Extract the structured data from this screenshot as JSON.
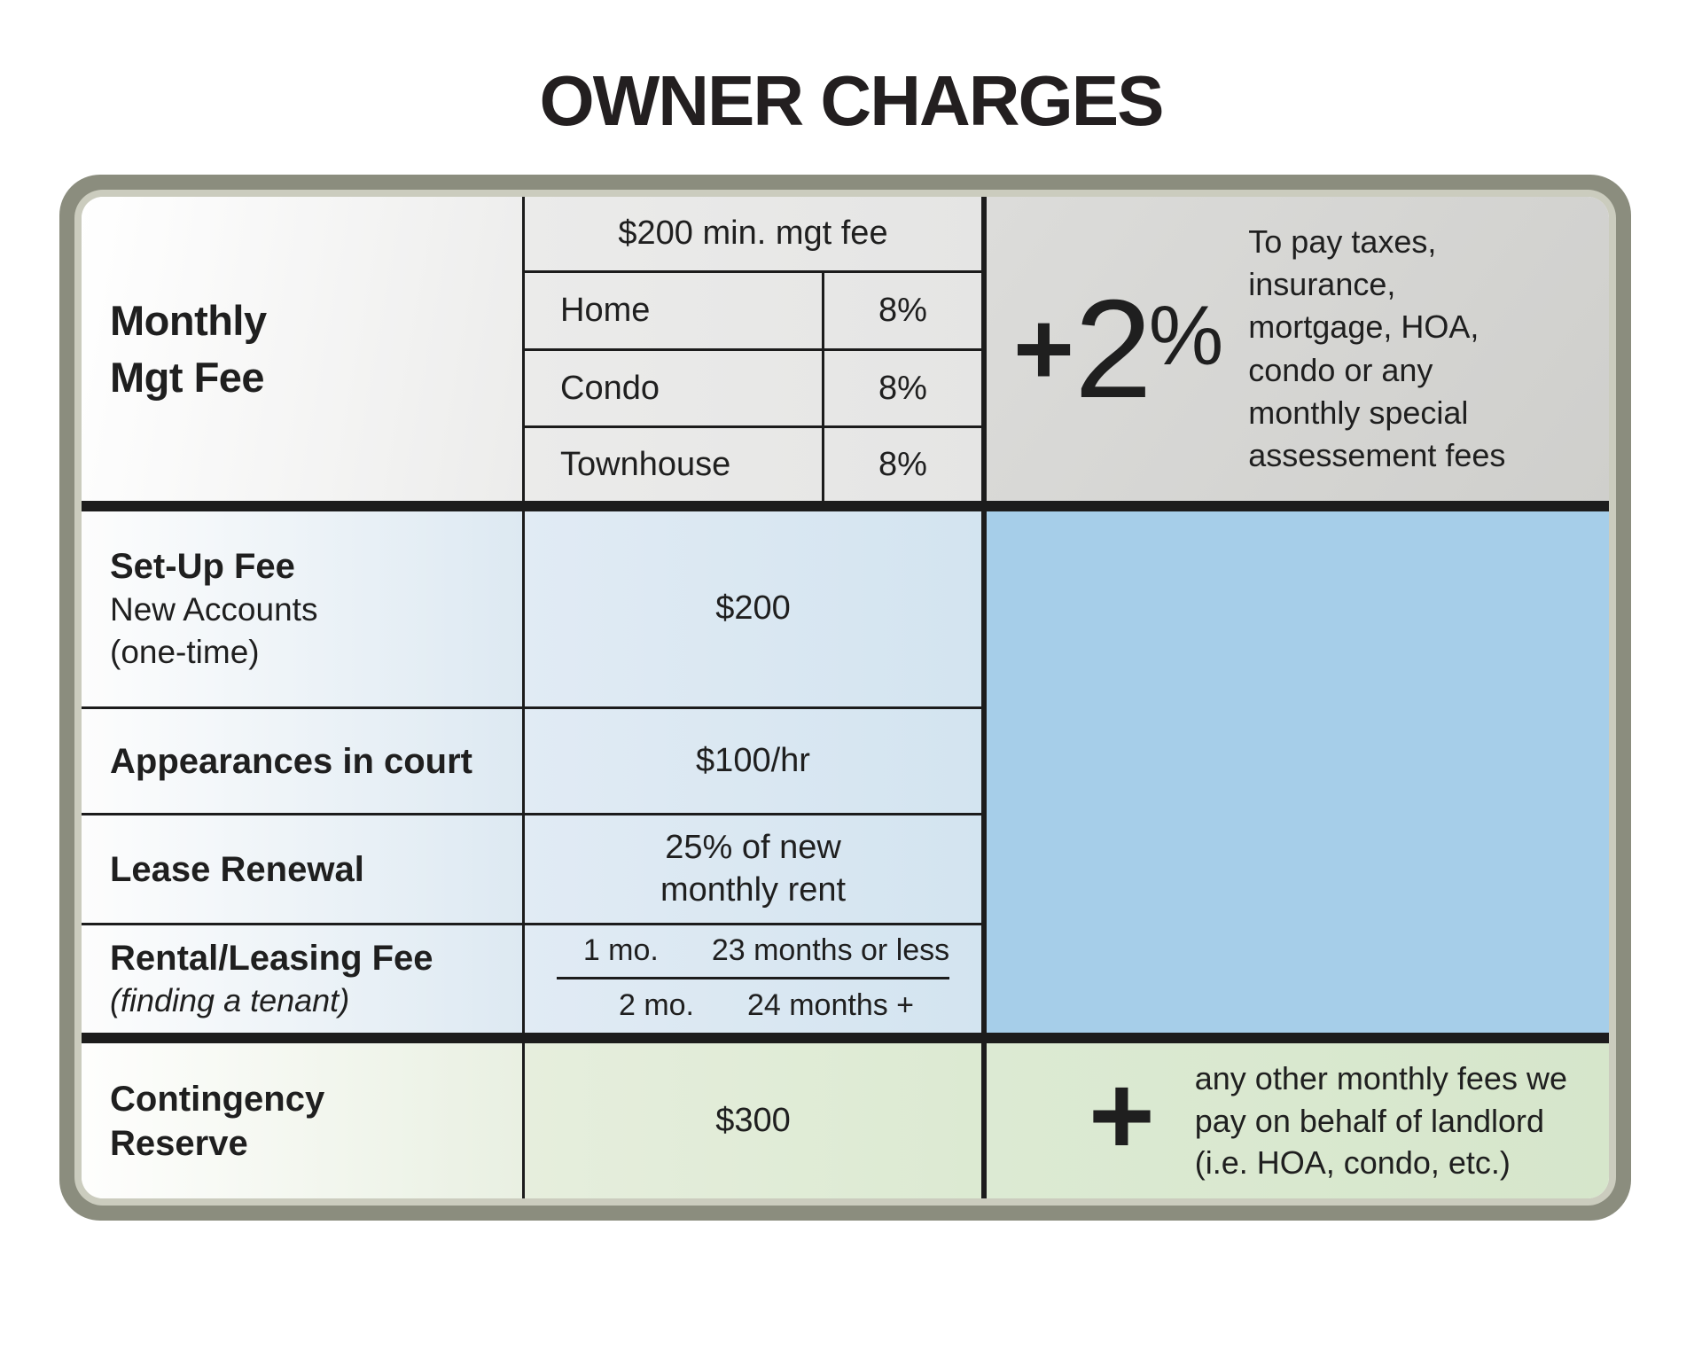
{
  "title": "OWNER CHARGES",
  "colors": {
    "frame_outer": "#8b8d7e",
    "frame_inner": "#cbccbe",
    "line_black": "#1c1c1c",
    "gray_panel": "#d5d5d3",
    "blue_panel": "#a6cee9",
    "green_panel": "#d9e8d0"
  },
  "monthly": {
    "label_line1": "Monthly",
    "label_line2": "Mgt Fee",
    "min_fee": "$200 min. mgt fee",
    "rates": [
      {
        "type": "Home",
        "rate": "8%"
      },
      {
        "type": "Condo",
        "rate": "8%"
      },
      {
        "type": "Townhouse",
        "rate": "8%"
      }
    ],
    "surcharge": {
      "plus": "+",
      "number": "2",
      "percent": "%"
    },
    "note_lines": [
      "To pay taxes,",
      "insurance,",
      "mortgage, HOA,",
      "condo or any",
      "monthly special",
      "assessement fees"
    ]
  },
  "fees": {
    "setup": {
      "label": "Set-Up Fee",
      "sub1": "New Accounts",
      "sub2": "(one-time)",
      "value": "$200"
    },
    "court": {
      "label": "Appearances in court",
      "value": "$100/hr"
    },
    "lease": {
      "label": "Lease Renewal",
      "value_line1": "25% of new",
      "value_line2": "monthly rent"
    },
    "rental": {
      "label": "Rental/Leasing Fee",
      "sub": "(finding a tenant)",
      "options": [
        {
          "fee": "1 mo.",
          "term": "23 months or less"
        },
        {
          "fee": "2 mo.",
          "term": "24 months +"
        }
      ]
    }
  },
  "contingency": {
    "label_line1": "Contingency",
    "label_line2": "Reserve",
    "value": "$300",
    "plus": "+",
    "note_lines": [
      "any other monthly fees we",
      "pay on behalf of landlord",
      "(i.e. HOA, condo, etc.)"
    ]
  }
}
